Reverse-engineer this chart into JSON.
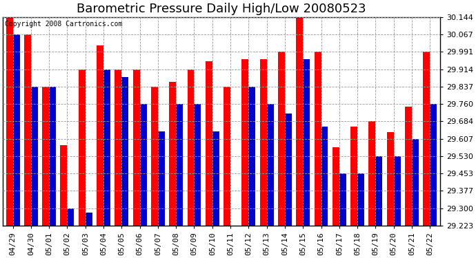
{
  "title": "Barometric Pressure Daily High/Low 20080523",
  "copyright": "Copyright 2008 Cartronics.com",
  "dates": [
    "04/29",
    "04/30",
    "05/01",
    "05/02",
    "05/03",
    "05/04",
    "05/05",
    "05/06",
    "05/07",
    "05/08",
    "05/09",
    "05/10",
    "05/11",
    "05/12",
    "05/13",
    "05/14",
    "05/15",
    "05/16",
    "05/17",
    "05/18",
    "05/19",
    "05/20",
    "05/21",
    "05/22"
  ],
  "highs": [
    30.144,
    30.067,
    29.837,
    29.58,
    29.914,
    30.02,
    29.914,
    29.914,
    29.837,
    29.86,
    29.914,
    29.95,
    29.837,
    29.96,
    29.96,
    29.991,
    30.144,
    29.991,
    29.57,
    29.66,
    29.684,
    29.637,
    29.75,
    29.991
  ],
  "lows": [
    30.067,
    29.837,
    29.837,
    29.3,
    29.28,
    29.914,
    29.88,
    29.76,
    29.64,
    29.76,
    29.76,
    29.64,
    29.223,
    29.837,
    29.76,
    29.72,
    29.96,
    29.66,
    29.453,
    29.453,
    29.53,
    29.53,
    29.607,
    29.76
  ],
  "high_color": "#ff0000",
  "low_color": "#0000cc",
  "background_color": "#ffffff",
  "plot_bg_color": "#ffffff",
  "grid_color": "#999999",
  "ymin": 29.223,
  "ymax": 30.144,
  "yticks": [
    29.223,
    29.3,
    29.377,
    29.453,
    29.53,
    29.607,
    29.684,
    29.76,
    29.837,
    29.914,
    29.991,
    30.067,
    30.144
  ],
  "title_fontsize": 13,
  "tick_fontsize": 8,
  "copyright_fontsize": 7,
  "bar_width": 0.38
}
